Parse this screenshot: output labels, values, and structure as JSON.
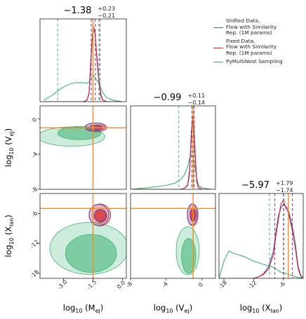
{
  "legend": {
    "items": [
      {
        "label": "Shifted Data,\nFlow with Similarity\nRep. (1M params)",
        "color": "#3a5bd9"
      },
      {
        "label": "Fixed Data,\nFlow with Similarity\nRep. (1M params)",
        "color": "#d62728"
      },
      {
        "label": "PyMultiNest Sampling",
        "color": "#3cb371"
      }
    ]
  },
  "colors": {
    "truth": "#f28c28",
    "shifted": "#3a5bd9",
    "fixed": "#d62728",
    "pymultinest": "#3cb371",
    "quantile_fixed": "#8b1a6b",
    "quantile_shifted": "#7b68c8"
  },
  "chart_data": {
    "type": "corner",
    "parameters": [
      {
        "key": "Mej",
        "xlabel": "log$_{10}$$(M_{ej})$",
        "label_main": "log",
        "label_sub": "10",
        "label_arg": "(M",
        "label_arg_sub": "ej",
        "title": "−1.38",
        "title_sup": "+0.23",
        "title_sub": "−0.21",
        "range": [
          -4.2,
          0.2
        ],
        "ticks": [
          -3.0,
          -1.5,
          0.0
        ],
        "tick_labels": [
          "-3.0",
          "-1.5",
          "0.0"
        ],
        "truth": -1.5,
        "median": -1.38,
        "q_lo": -1.59,
        "q_hi": -1.15
      },
      {
        "key": "Vej",
        "xlabel": "log$_{10}$$(V_{ej})$",
        "label_main": "log",
        "label_sub": "10",
        "label_arg": "(V",
        "label_arg_sub": "ej",
        "title": "−0.99",
        "title_sup": "+0.11",
        "title_sub": "−0.14",
        "range": [
          -8,
          1.5
        ],
        "ticks": [
          -8,
          -4,
          0
        ],
        "tick_labels": [
          "-8",
          "-4",
          "0"
        ],
        "truth": -1.0,
        "median": -0.99,
        "q_lo": -1.13,
        "q_hi": -0.88
      },
      {
        "key": "Xlan",
        "xlabel": "log$_{10}$$(X_{lan})$",
        "label_main": "log",
        "label_sub": "10",
        "label_arg": "(X",
        "label_arg_sub": "lan",
        "title": "−5.97",
        "title_sup": "+1.79",
        "title_sub": "−1.74",
        "range": [
          -19,
          -2
        ],
        "ticks": [
          -18,
          -12,
          -6
        ],
        "tick_labels": [
          "-18",
          "-12",
          "-6"
        ],
        "truth": -5.0,
        "median": -5.97,
        "q_lo": -7.71,
        "q_hi": -4.18
      }
    ],
    "row_ticks": {
      "Vej": {
        "ticks": [
          0,
          -4,
          -8
        ],
        "labels": [
          "0",
          "-4",
          "-8"
        ]
      },
      "Xlan": {
        "ticks": [
          -6,
          -12,
          -18
        ],
        "labels": [
          "-6",
          "-12",
          "-18"
        ]
      }
    },
    "ylabels": {
      "Vej": "log$_{10}$$(V_{ej})$",
      "Xlan": "log$_{10}$$(X_{lan})$"
    },
    "pymultinest_quantiles": {
      "Mej": [
        -3.3,
        -1.2
      ],
      "Vej": [
        -2.6,
        -1.0
      ],
      "Xlan": [
        -8.8,
        -5.9
      ]
    },
    "series": [
      {
        "name": "Shifted Data, Flow with Similarity Rep. (1M params)",
        "color": "#3a5bd9"
      },
      {
        "name": "Fixed Data, Flow with Similarity Rep. (1M params)",
        "color": "#d62728"
      },
      {
        "name": "PyMultiNest Sampling",
        "color": "#3cb371"
      }
    ],
    "hist_Mej": {
      "x": [
        -4.0,
        -3.6,
        -3.2,
        -2.8,
        -2.4,
        -2.0,
        -1.8,
        -1.7,
        -1.6,
        -1.5,
        -1.4,
        -1.3,
        -1.2,
        -1.1,
        -1.0,
        -0.8,
        -0.5,
        0.0
      ],
      "pymultinest": [
        0.02,
        0.08,
        0.16,
        0.22,
        0.25,
        0.25,
        0.24,
        0.26,
        0.3,
        0.35,
        0.32,
        0.28,
        0.24,
        0.18,
        0.12,
        0.05,
        0.02,
        0.0
      ],
      "fixed": [
        0,
        0,
        0,
        0,
        0,
        0,
        0.02,
        0.1,
        0.55,
        1.0,
        0.92,
        0.55,
        0.25,
        0.08,
        0.02,
        0,
        0,
        0
      ],
      "shifted": [
        0,
        0,
        0,
        0,
        0,
        0,
        0.02,
        0.12,
        0.6,
        0.95,
        0.9,
        0.6,
        0.3,
        0.1,
        0.02,
        0,
        0,
        0
      ]
    },
    "hist_Vej": {
      "x": [
        -8,
        -6,
        -4,
        -3,
        -2.5,
        -2,
        -1.6,
        -1.4,
        -1.2,
        -1.0,
        -0.8,
        -0.6,
        -0.4,
        0,
        1
      ],
      "pymultinest": [
        0.0,
        0.02,
        0.05,
        0.08,
        0.12,
        0.18,
        0.3,
        0.4,
        0.45,
        0.42,
        0.3,
        0.15,
        0.05,
        0.02,
        0.0
      ],
      "fixed": [
        0,
        0,
        0,
        0,
        0,
        0.01,
        0.05,
        0.2,
        0.7,
        1.0,
        0.55,
        0.12,
        0.02,
        0,
        0
      ],
      "shifted": [
        0,
        0,
        0,
        0,
        0,
        0.01,
        0.06,
        0.25,
        0.75,
        0.95,
        0.5,
        0.1,
        0.02,
        0,
        0
      ]
    },
    "hist_Xlan": {
      "x": [
        -19,
        -18,
        -17,
        -16,
        -15,
        -14,
        -13,
        -12,
        -11,
        -10,
        -9,
        -8,
        -7.5,
        -7,
        -6.5,
        -6,
        -5.5,
        -5,
        -4.5,
        -4,
        -3.5,
        -3,
        -2.5,
        -2
      ],
      "pymultinest": [
        0.0,
        0.22,
        0.35,
        0.32,
        0.3,
        0.28,
        0.25,
        0.22,
        0.2,
        0.18,
        0.16,
        0.14,
        0.12,
        0.1,
        0.08,
        0.07,
        0.06,
        0.05,
        0.04,
        0.03,
        0.02,
        0.01,
        0.01,
        0.0
      ],
      "fixed": [
        0,
        0,
        0,
        0,
        0,
        0,
        0,
        0,
        0.02,
        0.05,
        0.12,
        0.3,
        0.55,
        0.75,
        0.95,
        1.0,
        0.9,
        0.85,
        0.7,
        0.55,
        0.35,
        0.12,
        0.03,
        0
      ],
      "shifted": [
        0,
        0,
        0,
        0,
        0,
        0,
        0,
        0,
        0.02,
        0.06,
        0.15,
        0.35,
        0.6,
        0.8,
        0.9,
        0.95,
        0.92,
        0.88,
        0.75,
        0.6,
        0.4,
        0.15,
        0.04,
        0
      ]
    },
    "contours": {
      "Vej_vs_Mej": {
        "pymultinest": [
          {
            "cx": -2.6,
            "cy": -2.0,
            "rx": 1.7,
            "ry": 1.1,
            "rot": 10,
            "level": 0.25
          },
          {
            "cx": -2.2,
            "cy": -1.6,
            "rx": 1.1,
            "ry": 0.75,
            "rot": 10,
            "level": 0.55
          }
        ],
        "fixed": [
          {
            "cx": -1.35,
            "cy": -0.95,
            "rx": 0.55,
            "ry": 0.5,
            "rot": 0,
            "level": 0.35
          },
          {
            "cx": -1.3,
            "cy": -0.95,
            "rx": 0.3,
            "ry": 0.28,
            "rot": 0,
            "level": 0.75
          }
        ],
        "shifted": [
          {
            "cx": -1.4,
            "cy": -0.9,
            "rx": 0.5,
            "ry": 0.45,
            "rot": 0
          },
          {
            "cx": -1.4,
            "cy": -0.95,
            "rx": 0.28,
            "ry": 0.25,
            "rot": 0
          }
        ]
      },
      "Xlan_vs_Mej": {
        "pymultinest": [
          {
            "cx": -1.7,
            "cy": -13.0,
            "rx": 2.0,
            "ry": 5.2,
            "rot": 0,
            "level": 0.25
          },
          {
            "cx": -1.6,
            "cy": -14.0,
            "rx": 1.3,
            "ry": 3.8,
            "rot": 0,
            "level": 0.55
          }
        ],
        "fixed": [
          {
            "cx": -1.15,
            "cy": -6.3,
            "rx": 0.55,
            "ry": 2.2,
            "rot": 0,
            "level": 0.35
          },
          {
            "cx": -1.1,
            "cy": -6.5,
            "rx": 0.3,
            "ry": 1.3,
            "rot": 0,
            "level": 0.75
          }
        ],
        "shifted": [
          {
            "cx": -1.2,
            "cy": -6.3,
            "rx": 0.5,
            "ry": 2.1,
            "rot": 0
          },
          {
            "cx": -1.15,
            "cy": -6.4,
            "rx": 0.3,
            "ry": 1.2,
            "rot": 0
          }
        ]
      },
      "Xlan_vs_Vej": {
        "pymultinest": [
          {
            "cx": -1.6,
            "cy": -13.5,
            "rx": 1.3,
            "ry": 4.8,
            "rot": 0,
            "level": 0.25
          },
          {
            "cx": -1.5,
            "cy": -14.5,
            "rx": 0.8,
            "ry": 3.5,
            "rot": 0,
            "level": 0.55
          }
        ],
        "fixed": [
          {
            "cx": -1.05,
            "cy": -6.3,
            "rx": 0.6,
            "ry": 2.2,
            "rot": 0,
            "level": 0.35
          },
          {
            "cx": -1.0,
            "cy": -6.3,
            "rx": 0.32,
            "ry": 1.3,
            "rot": 0,
            "level": 0.75
          }
        ],
        "shifted": [
          {
            "cx": -1.1,
            "cy": -6.2,
            "rx": 0.55,
            "ry": 2.1,
            "rot": 0
          },
          {
            "cx": -1.05,
            "cy": -6.3,
            "rx": 0.3,
            "ry": 1.2,
            "rot": 0
          }
        ]
      }
    }
  }
}
